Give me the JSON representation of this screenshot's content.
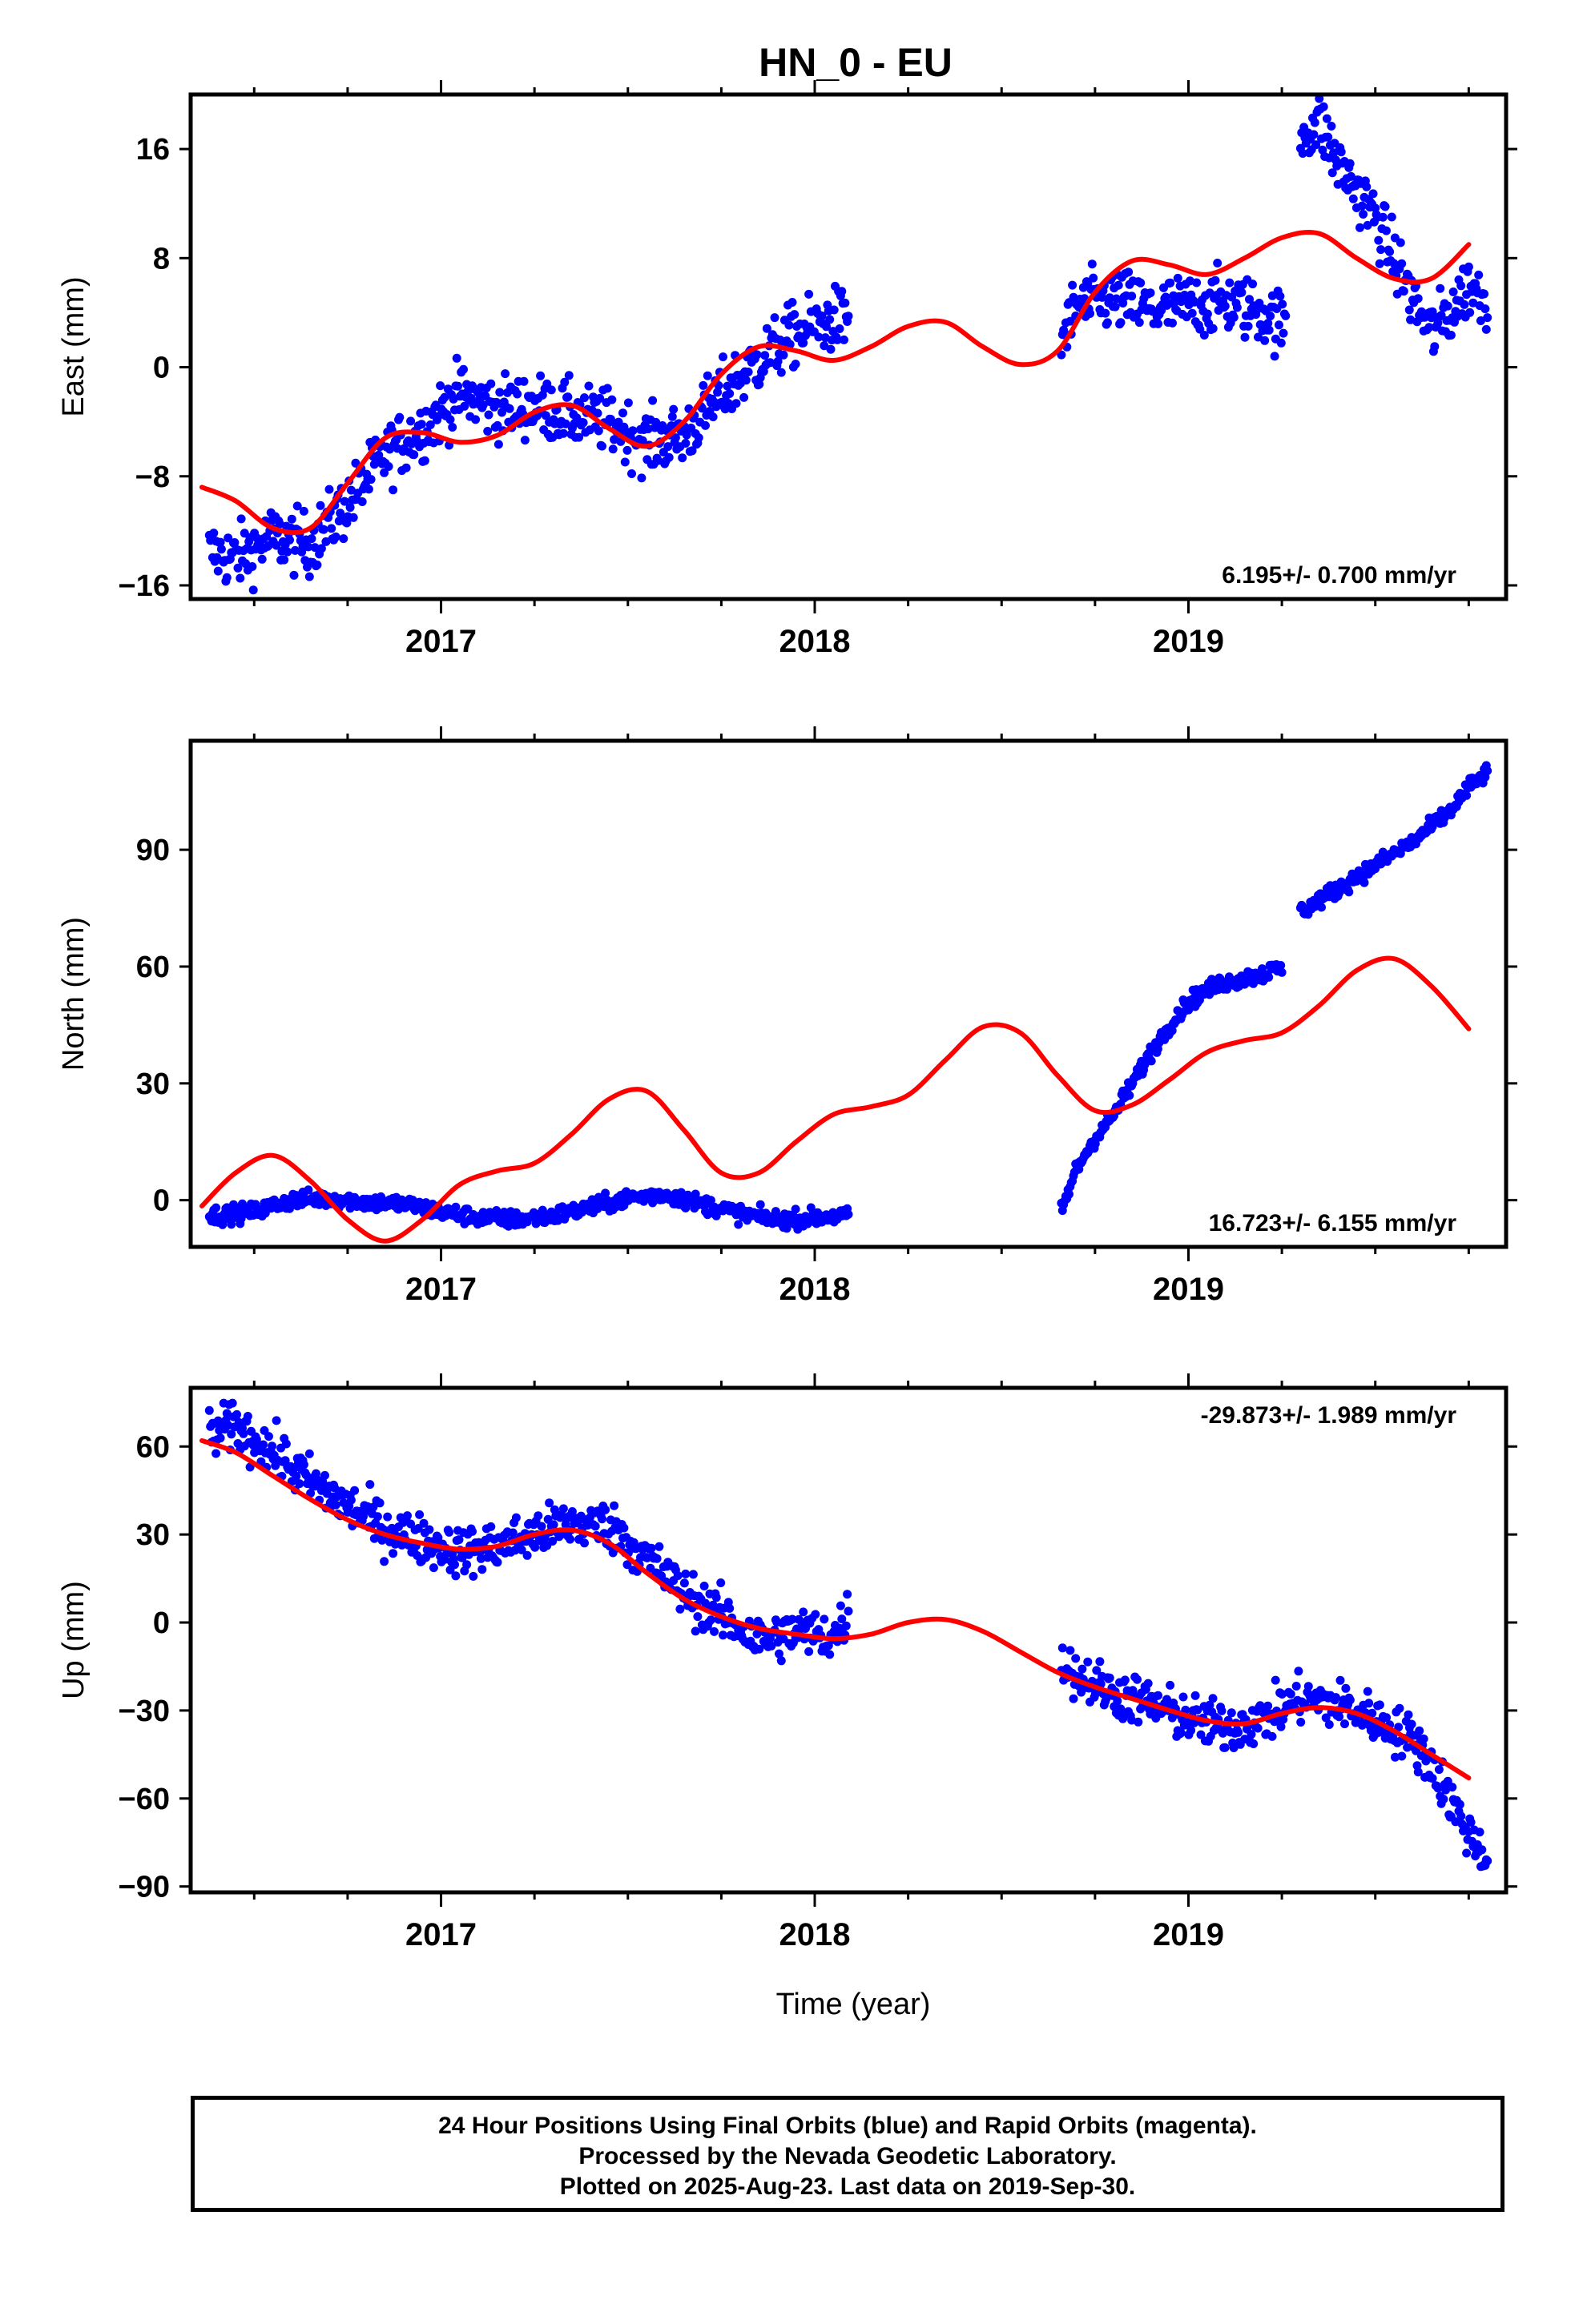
{
  "title": "HN_0 - EU",
  "colors": {
    "data": "#0000ff",
    "model": "#ff0000",
    "axis": "#000000"
  },
  "xlabel": "Time (year)",
  "caption": {
    "line1": "24 Hour Positions Using Final Orbits (blue) and Rapid Orbits (magenta).",
    "line2": "Processed by the Nevada Geodetic Laboratory.",
    "line3": "Plotted on 2025-Aug-23. Last data on 2019-Sep-30."
  },
  "chart_data": [
    {
      "type": "scatter",
      "component": "east",
      "ylabel": "East (mm)",
      "xlim": [
        2016.33,
        2019.85
      ],
      "ylim": [
        -17,
        20
      ],
      "yticks": [
        -16,
        -8,
        0,
        8,
        16
      ],
      "xticks": [
        2017,
        2018,
        2019
      ],
      "velocity": "6.195+/- 0.700 mm/yr",
      "velocity_position": "bottom-right",
      "series": [
        {
          "role": "daily positions (final orbits)",
          "segments": [
            {
              "x": [
                2016.38,
                2016.45,
                2016.55,
                2016.65,
                2016.75,
                2016.85,
                2016.95,
                2017.05,
                2017.15,
                2017.25,
                2017.35,
                2017.45,
                2017.55,
                2017.65,
                2017.75,
                2017.85,
                2017.95,
                2018.05,
                2018.09
              ],
              "y": [
                -13.5,
                -14.0,
                -12.5,
                -13.0,
                -10.0,
                -6.5,
                -4.5,
                -2.0,
                -3.0,
                -2.8,
                -3.5,
                -4.0,
                -5.5,
                -5.0,
                -2.0,
                0.5,
                2.5,
                3.5,
                3.5
              ]
            },
            {
              "x": [
                2018.66,
                2018.7,
                2018.8,
                2018.9,
                2019.0,
                2019.1,
                2019.2,
                2019.26
              ],
              "y": [
                2.0,
                4.5,
                5.0,
                4.2,
                4.5,
                4.8,
                4.0,
                3.0
              ]
            },
            {
              "x": [
                2019.3,
                2019.35,
                2019.4,
                2019.45,
                2019.5,
                2019.55,
                2019.6,
                2019.65,
                2019.7,
                2019.75,
                2019.8
              ],
              "y": [
                17.0,
                18.0,
                15.0,
                13.0,
                11.0,
                8.0,
                5.0,
                2.5,
                4.0,
                6.0,
                5.0
              ]
            }
          ]
        },
        {
          "role": "model fit",
          "x": [
            2016.36,
            2016.45,
            2016.55,
            2016.65,
            2016.75,
            2016.85,
            2016.95,
            2017.05,
            2017.15,
            2017.25,
            2017.35,
            2017.45,
            2017.55,
            2017.65,
            2017.75,
            2017.85,
            2017.95,
            2018.05,
            2018.15,
            2018.25,
            2018.35,
            2018.45,
            2018.55,
            2018.65,
            2018.75,
            2018.85,
            2018.95,
            2019.05,
            2019.15,
            2019.25,
            2019.35,
            2019.45,
            2019.55,
            2019.65,
            2019.75
          ],
          "y": [
            -8.8,
            -9.8,
            -11.8,
            -11.8,
            -8.5,
            -5.2,
            -4.8,
            -5.5,
            -5.0,
            -3.3,
            -2.8,
            -4.5,
            -5.8,
            -4.0,
            -0.5,
            1.5,
            1.2,
            0.5,
            1.5,
            3.0,
            3.3,
            1.5,
            0.2,
            1.2,
            5.5,
            7.8,
            7.5,
            6.8,
            8.0,
            9.5,
            9.8,
            8.0,
            6.5,
            6.5,
            9.0
          ]
        }
      ]
    },
    {
      "type": "scatter",
      "component": "north",
      "ylabel": "North (mm)",
      "xlim": [
        2016.33,
        2019.85
      ],
      "ylim": [
        -12,
        118
      ],
      "yticks": [
        0,
        30,
        60,
        90
      ],
      "xticks": [
        2017,
        2018,
        2019
      ],
      "velocity": "16.723+/- 6.155 mm/yr",
      "velocity_position": "bottom-right",
      "series": [
        {
          "role": "daily positions (final orbits)",
          "segments": [
            {
              "x": [
                2016.38,
                2016.5,
                2016.6,
                2016.7,
                2016.8,
                2016.9,
                2017.0,
                2017.1,
                2017.2,
                2017.3,
                2017.4,
                2017.5,
                2017.6,
                2017.7,
                2017.8,
                2017.9,
                2018.0,
                2018.09
              ],
              "y": [
                -4.0,
                -3.0,
                0.0,
                0.5,
                -0.5,
                -1.0,
                -3.0,
                -4.5,
                -5.0,
                -4.0,
                -2.0,
                0.5,
                1.5,
                -1.0,
                -3.5,
                -5.0,
                -4.5,
                -4.0
              ]
            },
            {
              "x": [
                2018.66,
                2018.7,
                2018.75,
                2018.8,
                2018.85,
                2018.9,
                2018.95,
                2019.0,
                2019.05,
                2019.1,
                2019.15,
                2019.2,
                2019.25
              ],
              "y": [
                -3.0,
                8.0,
                16.0,
                22.0,
                30.0,
                38.0,
                45.0,
                51.0,
                54.0,
                56.0,
                57.0,
                58.0,
                60.0
              ]
            },
            {
              "x": [
                2019.3,
                2019.4,
                2019.5,
                2019.6,
                2019.7,
                2019.75,
                2019.8
              ],
              "y": [
                74.0,
                80.0,
                86.0,
                92.0,
                100.0,
                106.0,
                110.0
              ]
            }
          ]
        },
        {
          "role": "model fit",
          "x": [
            2016.36,
            2016.45,
            2016.55,
            2016.65,
            2016.75,
            2016.85,
            2016.95,
            2017.05,
            2017.15,
            2017.25,
            2017.35,
            2017.45,
            2017.55,
            2017.65,
            2017.75,
            2017.85,
            2017.95,
            2018.05,
            2018.15,
            2018.25,
            2018.35,
            2018.45,
            2018.55,
            2018.65,
            2018.75,
            2018.85,
            2018.95,
            2019.05,
            2019.15,
            2019.25,
            2019.35,
            2019.45,
            2019.55,
            2019.65,
            2019.75
          ],
          "y": [
            -1.5,
            7.0,
            11.5,
            5.0,
            -5.0,
            -10.5,
            -5.0,
            4.0,
            7.5,
            9.5,
            17.0,
            26.0,
            28.0,
            18.0,
            7.0,
            7.0,
            15.0,
            22.0,
            24.0,
            27.0,
            36.0,
            44.5,
            43.0,
            32.0,
            23.0,
            24.5,
            31.0,
            38.0,
            41.0,
            43.0,
            50.0,
            59.0,
            62.0,
            55.0,
            44.0
          ]
        }
      ]
    },
    {
      "type": "scatter",
      "component": "up",
      "ylabel": "Up (mm)",
      "xlim": [
        2016.33,
        2019.85
      ],
      "ylim": [
        -92,
        80
      ],
      "yticks": [
        -90,
        -60,
        -30,
        0,
        30,
        60
      ],
      "xticks": [
        2017,
        2018,
        2019
      ],
      "velocity": "-29.873+/- 1.989 mm/yr",
      "velocity_position": "top-right",
      "series": [
        {
          "role": "daily positions (final orbits)",
          "segments": [
            {
              "x": [
                2016.38,
                2016.45,
                2016.55,
                2016.65,
                2016.75,
                2016.85,
                2016.95,
                2017.05,
                2017.15,
                2017.25,
                2017.35,
                2017.45,
                2017.55,
                2017.65,
                2017.75,
                2017.85,
                2017.95,
                2018.05,
                2018.09
              ],
              "y": [
                64.0,
                67.0,
                58.0,
                48.0,
                40.0,
                32.0,
                28.0,
                24.0,
                26.0,
                30.0,
                34.0,
                33.0,
                22.0,
                10.0,
                2.0,
                -6.0,
                -3.0,
                -5.0,
                3.0
              ]
            },
            {
              "x": [
                2018.66,
                2018.7,
                2018.8,
                2018.9,
                2019.0,
                2019.1,
                2019.2,
                2019.3,
                2019.4,
                2019.5,
                2019.6,
                2019.65,
                2019.7,
                2019.75,
                2019.8
              ],
              "y": [
                -12.0,
                -18.0,
                -24.0,
                -28.0,
                -33.0,
                -36.0,
                -33.0,
                -26.0,
                -28.0,
                -33.0,
                -40.0,
                -48.0,
                -60.0,
                -72.0,
                -80.0
              ]
            }
          ]
        },
        {
          "role": "model fit",
          "x": [
            2016.36,
            2016.45,
            2016.55,
            2016.65,
            2016.75,
            2016.85,
            2016.95,
            2017.05,
            2017.15,
            2017.25,
            2017.35,
            2017.45,
            2017.55,
            2017.65,
            2017.75,
            2017.85,
            2017.95,
            2018.05,
            2018.15,
            2018.25,
            2018.35,
            2018.45,
            2018.55,
            2018.65,
            2018.75,
            2018.85,
            2018.95,
            2019.05,
            2019.15,
            2019.25,
            2019.35,
            2019.45,
            2019.55,
            2019.65,
            2019.75
          ],
          "y": [
            62.0,
            58.0,
            50.0,
            42.0,
            35.0,
            30.0,
            27.0,
            25.0,
            26.0,
            30.0,
            31.5,
            27.0,
            17.0,
            8.0,
            2.0,
            -2.0,
            -4.0,
            -5.5,
            -4.0,
            0.0,
            1.0,
            -3.0,
            -10.0,
            -17.0,
            -22.0,
            -26.0,
            -30.0,
            -33.5,
            -34.5,
            -31.0,
            -29.0,
            -31.0,
            -37.0,
            -45.0,
            -53.0
          ]
        }
      ]
    }
  ]
}
